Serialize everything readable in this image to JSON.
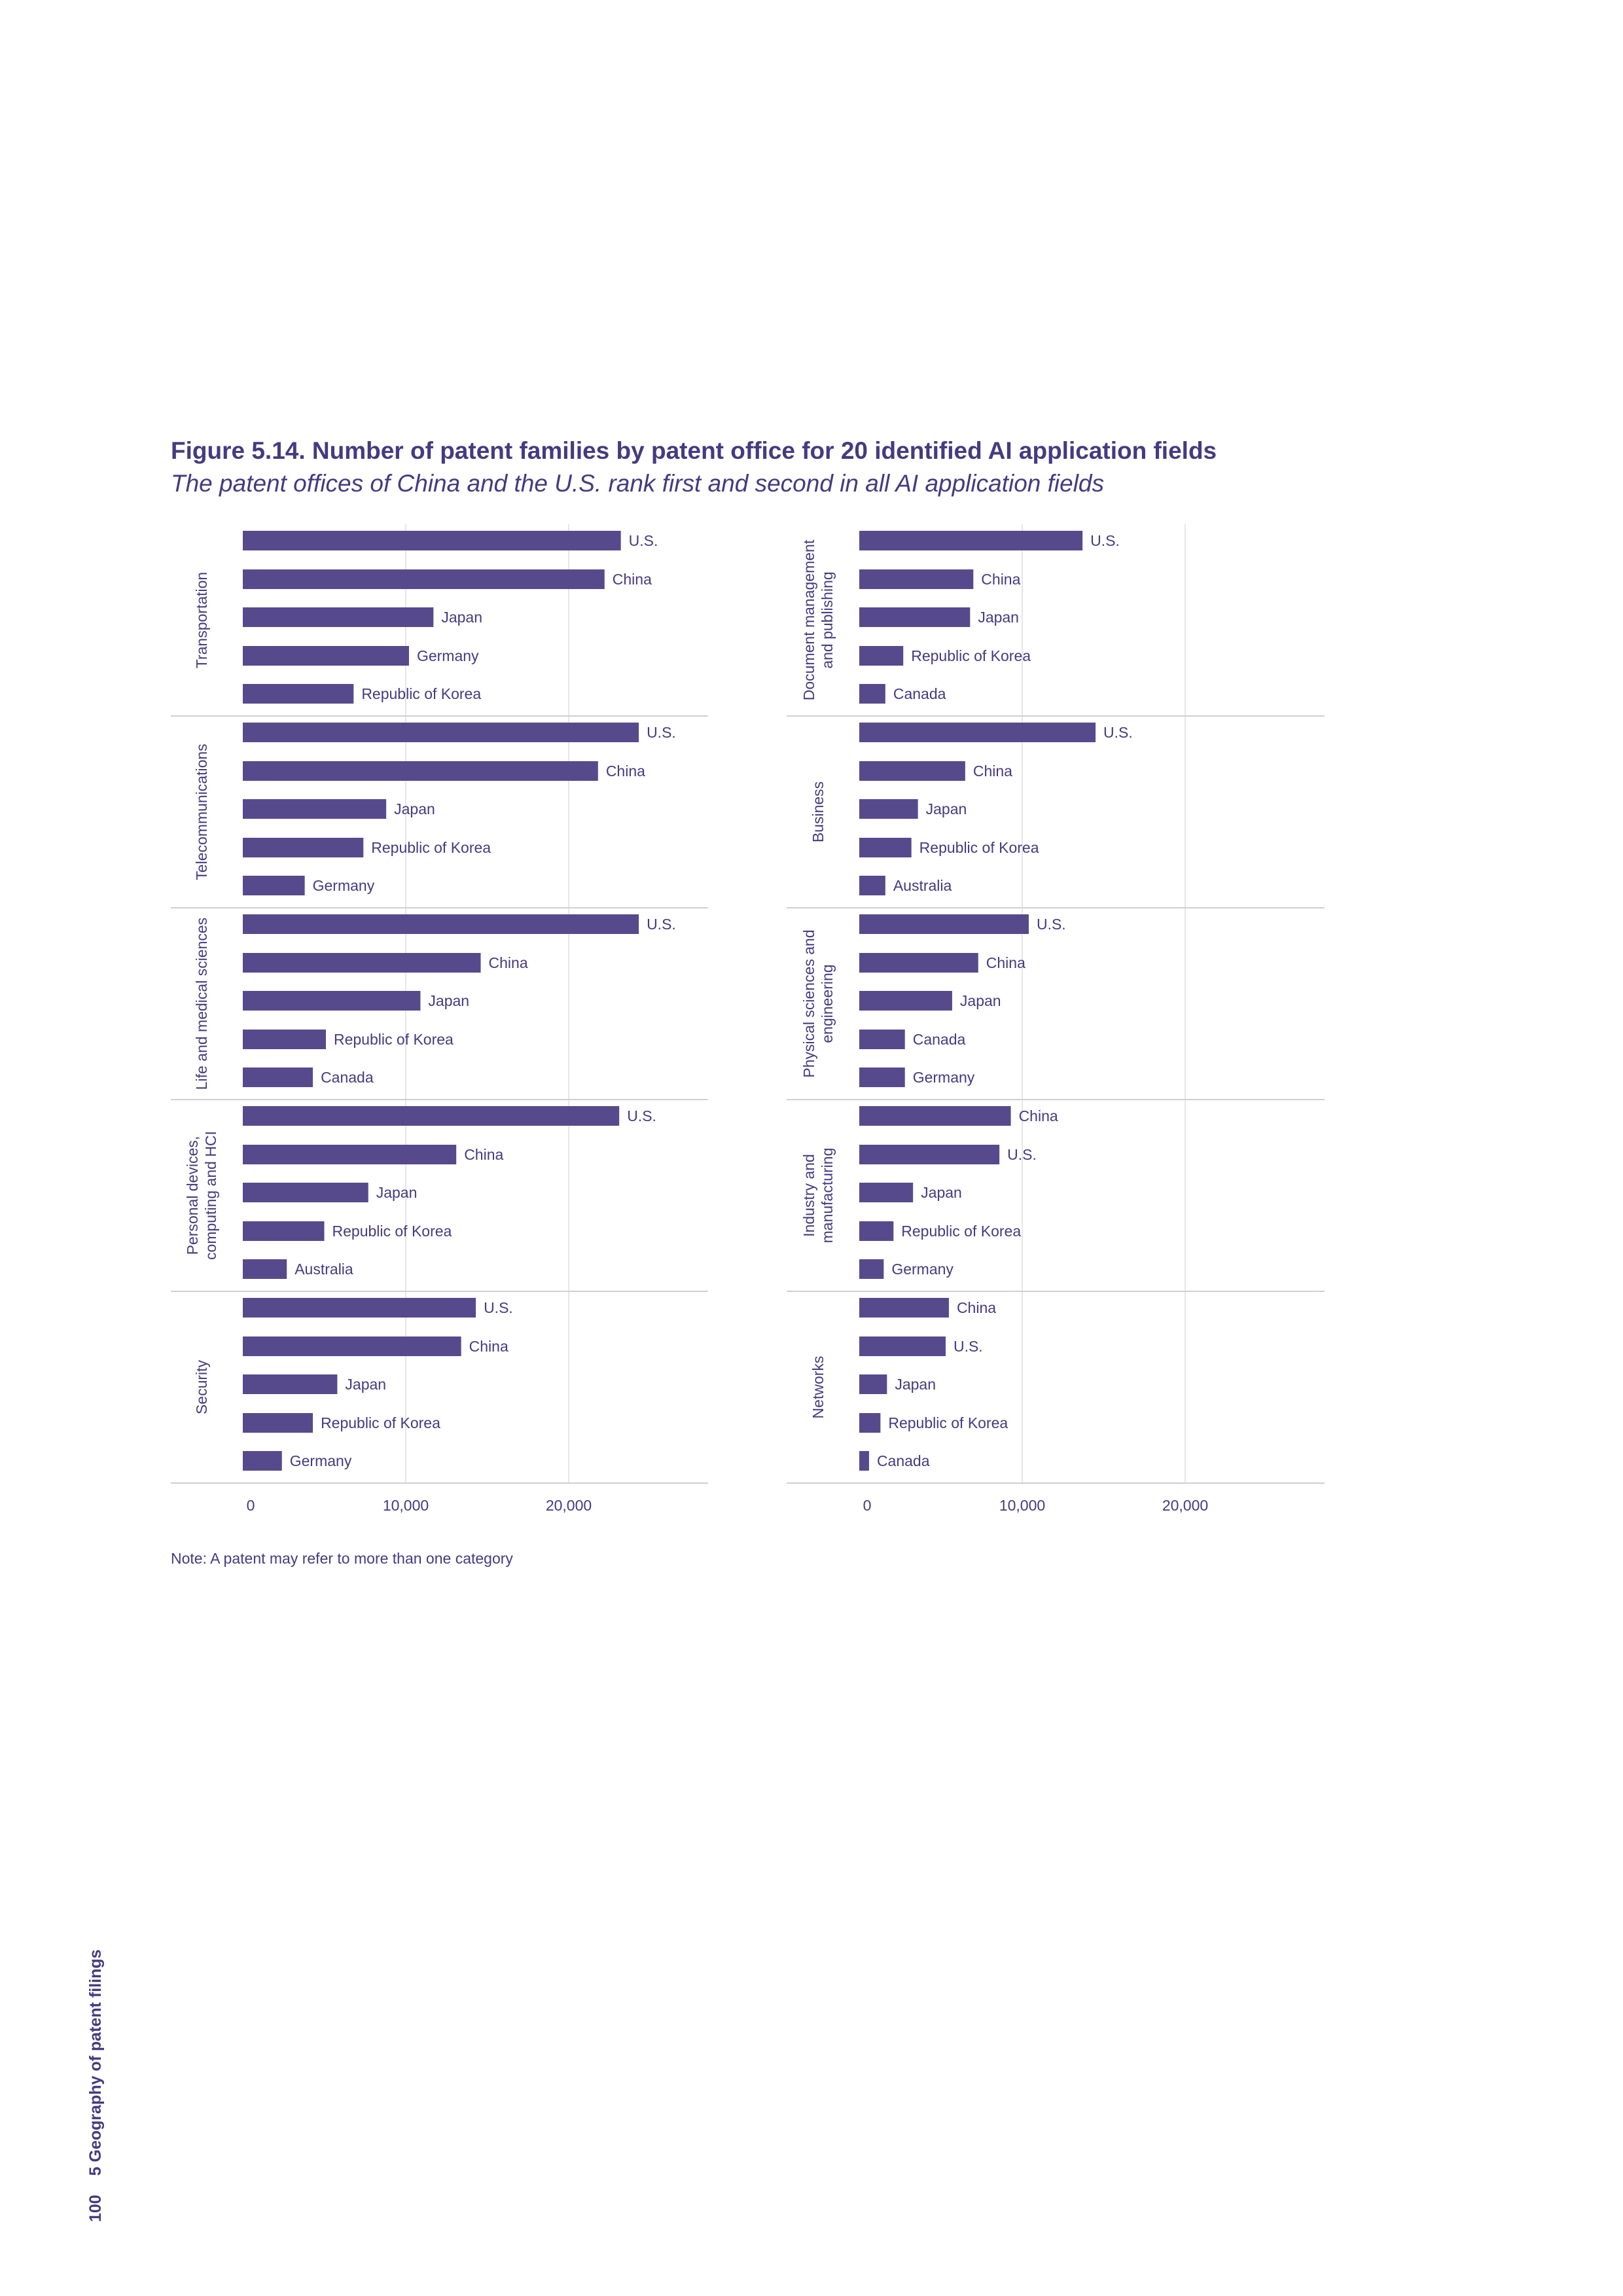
{
  "figure": {
    "title": "Figure 5.14. Number of patent families by patent office for 20 identified AI application fields",
    "subtitle": "The patent offices of China and the U.S. rank first and second in all AI application fields",
    "note": "Note: A patent may refer to more than one category"
  },
  "page": {
    "number": "100",
    "section": "5 Geography of patent filings"
  },
  "colors": {
    "bar": "#574a8c",
    "text": "#463a80",
    "grid": "#e6e6ea",
    "separator": "#cfcfd6"
  },
  "chart_data": {
    "type": "bar",
    "orientation": "horizontal",
    "xlim": [
      0,
      28500
    ],
    "x_ticks": [
      0,
      10000,
      20000
    ],
    "x_tick_labels": [
      "0",
      "10,000",
      "20,000"
    ],
    "grid": true,
    "columns": [
      {
        "panels": [
          {
            "field": [
              "Transportation"
            ],
            "bars": [
              {
                "label": "U.S.",
                "value": 23200
              },
              {
                "label": "China",
                "value": 22200
              },
              {
                "label": "Japan",
                "value": 11700
              },
              {
                "label": "Germany",
                "value": 10200
              },
              {
                "label": "Republic of Korea",
                "value": 6800
              }
            ]
          },
          {
            "field": [
              "Telecommunications"
            ],
            "bars": [
              {
                "label": "U.S.",
                "value": 24300
              },
              {
                "label": "China",
                "value": 21800
              },
              {
                "label": "Japan",
                "value": 8800
              },
              {
                "label": "Republic of Korea",
                "value": 7400
              },
              {
                "label": "Germany",
                "value": 3800
              }
            ]
          },
          {
            "field": [
              "Life and medical sciences"
            ],
            "bars": [
              {
                "label": "U.S.",
                "value": 24300
              },
              {
                "label": "China",
                "value": 14600
              },
              {
                "label": "Japan",
                "value": 10900
              },
              {
                "label": "Republic of Korea",
                "value": 5100
              },
              {
                "label": "Canada",
                "value": 4300
              }
            ]
          },
          {
            "field": [
              "Personal devices,",
              "computing and HCI"
            ],
            "bars": [
              {
                "label": "U.S.",
                "value": 23100
              },
              {
                "label": "China",
                "value": 13100
              },
              {
                "label": "Japan",
                "value": 7700
              },
              {
                "label": "Republic of Korea",
                "value": 5000
              },
              {
                "label": "Australia",
                "value": 2700
              }
            ]
          },
          {
            "field": [
              "Security"
            ],
            "bars": [
              {
                "label": "U.S.",
                "value": 14300
              },
              {
                "label": "China",
                "value": 13400
              },
              {
                "label": "Japan",
                "value": 5800
              },
              {
                "label": "Republic of Korea",
                "value": 4300
              },
              {
                "label": "Germany",
                "value": 2400
              }
            ]
          }
        ]
      },
      {
        "panels": [
          {
            "field": [
              "Document management",
              "and publishing"
            ],
            "bars": [
              {
                "label": "U.S.",
                "value": 13700
              },
              {
                "label": "China",
                "value": 7000
              },
              {
                "label": "Japan",
                "value": 6800
              },
              {
                "label": "Republic of Korea",
                "value": 2700
              },
              {
                "label": "Canada",
                "value": 1600
              }
            ]
          },
          {
            "field": [
              "Business"
            ],
            "bars": [
              {
                "label": "U.S.",
                "value": 14500
              },
              {
                "label": "China",
                "value": 6500
              },
              {
                "label": "Japan",
                "value": 3600
              },
              {
                "label": "Republic of Korea",
                "value": 3200
              },
              {
                "label": "Australia",
                "value": 1600
              }
            ]
          },
          {
            "field": [
              "Physical sciences and",
              "engineering"
            ],
            "bars": [
              {
                "label": "U.S.",
                "value": 10400
              },
              {
                "label": "China",
                "value": 7300
              },
              {
                "label": "Japan",
                "value": 5700
              },
              {
                "label": "Canada",
                "value": 2800
              },
              {
                "label": "Germany",
                "value": 2800
              }
            ]
          },
          {
            "field": [
              "Industry and",
              "manufacturing"
            ],
            "bars": [
              {
                "label": "China",
                "value": 9300
              },
              {
                "label": "U.S.",
                "value": 8600
              },
              {
                "label": "Japan",
                "value": 3300
              },
              {
                "label": "Republic of Korea",
                "value": 2100
              },
              {
                "label": "Germany",
                "value": 1500
              }
            ]
          },
          {
            "field": [
              "Networks"
            ],
            "bars": [
              {
                "label": "China",
                "value": 5500
              },
              {
                "label": "U.S.",
                "value": 5300
              },
              {
                "label": "Japan",
                "value": 1700
              },
              {
                "label": "Republic of Korea",
                "value": 1300
              },
              {
                "label": "Canada",
                "value": 600
              }
            ]
          }
        ]
      }
    ]
  }
}
